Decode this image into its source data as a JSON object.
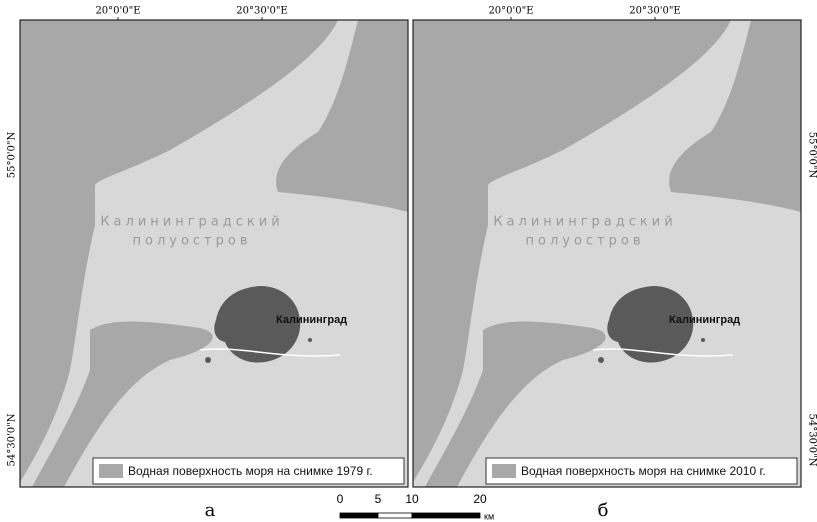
{
  "panels": [
    {
      "letter": "а",
      "lon": [
        "20°0'0\"E",
        "20°30'0\"E"
      ],
      "lat": [
        "55°0'0\"N",
        "54°30'0\"N"
      ],
      "peninsula": [
        "Калининградский",
        "полуостров"
      ],
      "city": "Калининград",
      "legend": "Водная поверхность моря на снимке 1979 г."
    },
    {
      "letter": "б",
      "lon": [
        "20°0'0\"E",
        "20°30'0\"E"
      ],
      "lat": [
        "55°0'0\"N",
        "54°30'0\"N"
      ],
      "peninsula": [
        "Калининградский",
        "полуостров"
      ],
      "city": "Калининград",
      "legend": "Водная поверхность моря на снимке 2010 г."
    }
  ],
  "scale": {
    "ticks": [
      "0",
      "5",
      "10",
      "20"
    ],
    "unit": "км"
  }
}
